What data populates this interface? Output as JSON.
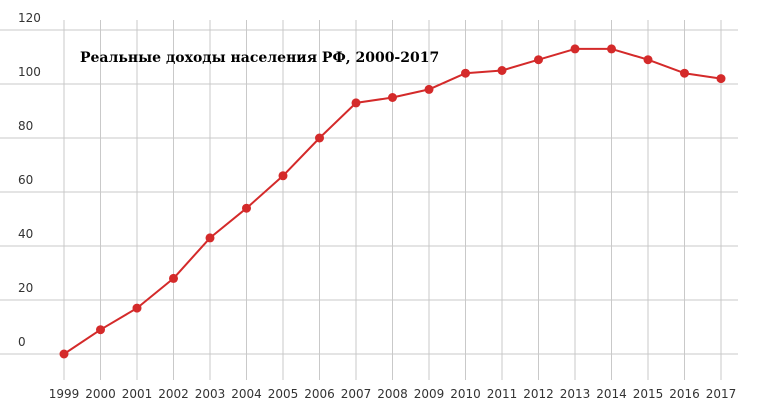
{
  "colors": {
    "line": "#d42a2a",
    "point": "#d42a2a",
    "grid": "#c9c9c9",
    "text": "#333333",
    "background": "#ffffff"
  },
  "chart_data": {
    "type": "line",
    "title": "Реальные доходы населения РФ, 2000-2017",
    "xlabel": "",
    "ylabel": "",
    "grid": true,
    "legend": "none",
    "ylim": [
      0,
      120
    ],
    "y_ticks": [
      "0",
      "20",
      "40",
      "60",
      "80",
      "100",
      "120"
    ],
    "categories": [
      "1999",
      "2000",
      "2001",
      "2002",
      "2003",
      "2004",
      "2005",
      "2006",
      "2007",
      "2008",
      "2009",
      "2010",
      "2011",
      "2012",
      "2013",
      "2014",
      "2015",
      "2016",
      "2017"
    ],
    "series": [
      {
        "values": [
          0,
          9,
          17,
          28,
          43,
          54,
          66,
          80,
          93,
          95,
          98,
          104,
          105,
          109,
          113,
          113,
          109,
          104,
          102
        ]
      }
    ]
  }
}
